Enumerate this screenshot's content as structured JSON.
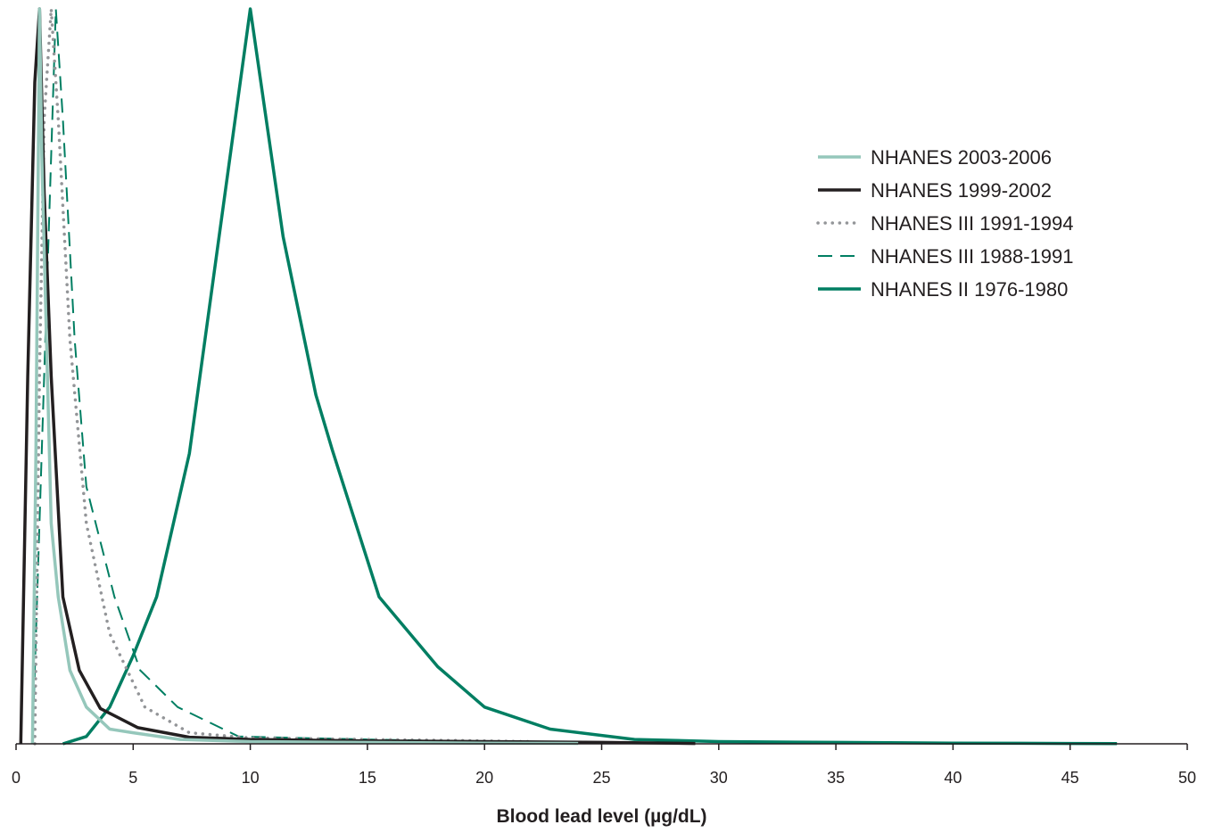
{
  "chart_data": {
    "type": "line",
    "title": "",
    "xlabel": "Blood lead level (µg/dL)",
    "ylabel": "",
    "xlim": [
      0,
      50
    ],
    "ylim": [
      0,
      1
    ],
    "xticks": [
      0,
      5,
      10,
      15,
      20,
      25,
      30,
      35,
      40,
      45,
      50
    ],
    "grid": false,
    "legend_position": "top-right",
    "series": [
      {
        "name": "NHANES 2003-2006",
        "color": "#95c7bb",
        "style": "solid",
        "x": [
          0.7,
          0.85,
          1.0,
          1.1,
          1.3,
          1.5,
          1.8,
          2.3,
          3.0,
          4.0,
          5.0,
          7.0,
          10.0,
          15.0,
          20.0,
          24.0
        ],
        "y": [
          0.0,
          0.4,
          1.0,
          0.8,
          0.55,
          0.3,
          0.2,
          0.1,
          0.05,
          0.02,
          0.015,
          0.006,
          0.003,
          0.002,
          0.001,
          0.0005
        ]
      },
      {
        "name": "NHANES 1999-2002",
        "color": "#231f20",
        "style": "solid",
        "x": [
          0.2,
          0.5,
          0.8,
          1.0,
          1.2,
          1.5,
          2.0,
          2.7,
          3.6,
          5.2,
          7.4,
          10.0,
          15.0,
          20.0,
          25.0,
          29.0
        ],
        "y": [
          0.0,
          0.5,
          0.9,
          1.0,
          0.75,
          0.5,
          0.2,
          0.1,
          0.048,
          0.022,
          0.009,
          0.006,
          0.004,
          0.003,
          0.002,
          0.0005
        ]
      },
      {
        "name": "NHANES III 1991-1994",
        "color": "#939598",
        "style": "dotted",
        "x": [
          0.8,
          1.0,
          1.2,
          1.5,
          1.8,
          2.3,
          3.0,
          4.0,
          5.5,
          7.4,
          10.0,
          15.0,
          20.0,
          22.0
        ],
        "y": [
          0.0,
          0.5,
          0.85,
          1.0,
          0.85,
          0.55,
          0.3,
          0.15,
          0.05,
          0.015,
          0.008,
          0.006,
          0.004,
          0.003
        ]
      },
      {
        "name": "NHANES III 1988-1991",
        "color": "#007e62",
        "style": "dashed",
        "x": [
          0.7,
          1.2,
          1.7,
          2.0,
          2.5,
          3.0,
          4.2,
          5.3,
          6.9,
          9.5,
          12.0,
          15.0,
          18.0,
          20.0
        ],
        "y": [
          0.0,
          0.5,
          1.0,
          0.85,
          0.55,
          0.35,
          0.2,
          0.1,
          0.05,
          0.01,
          0.008,
          0.006,
          0.004,
          0.003
        ]
      },
      {
        "name": "NHANES II 1976-1980",
        "color": "#007e62",
        "style": "solid",
        "x": [
          2.0,
          3.0,
          4.0,
          5.0,
          6.0,
          7.4,
          10.0,
          11.4,
          12.8,
          13.5,
          15.5,
          18.0,
          20.0,
          22.8,
          26.4,
          30.0,
          35.0,
          40.0,
          45.0,
          47.0
        ],
        "y": [
          0.0,
          0.01,
          0.05,
          0.12,
          0.2,
          0.395,
          1.0,
          0.69,
          0.475,
          0.4,
          0.2,
          0.105,
          0.05,
          0.02,
          0.006,
          0.003,
          0.002,
          0.001,
          0.0005,
          0.0003
        ]
      }
    ]
  }
}
